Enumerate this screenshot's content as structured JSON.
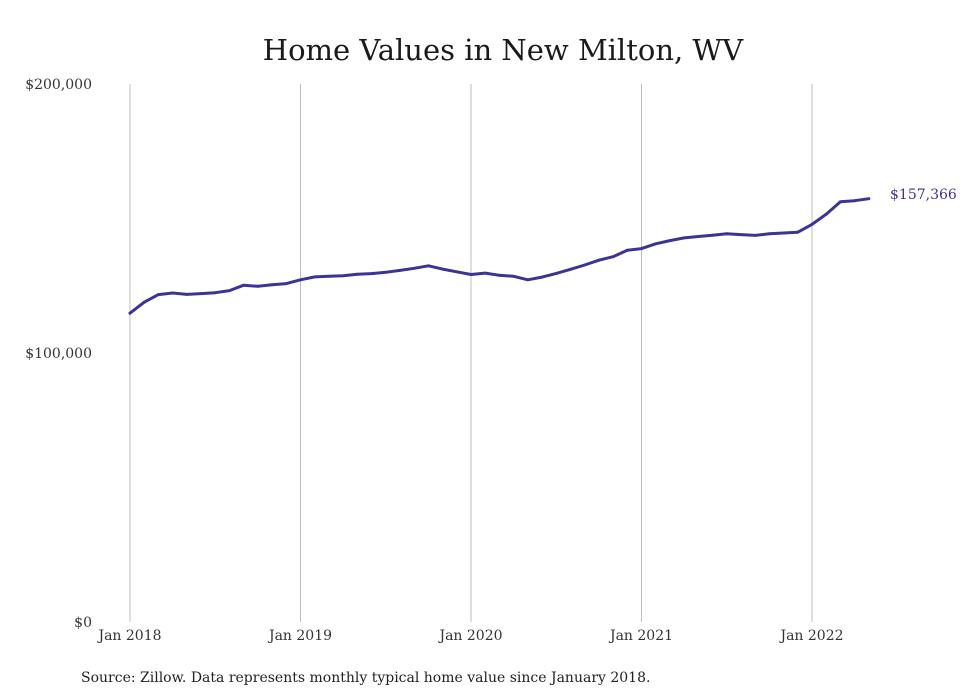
{
  "chart_data": {
    "type": "line",
    "title": "Home Values in New Milton, WV",
    "source_note": "Source: Zillow. Data represents monthly typical home value since January 2018.",
    "xlabel": "",
    "ylabel": "",
    "ylim": [
      0,
      200000
    ],
    "y_ticks": [
      {
        "value": 0,
        "label": "$0"
      },
      {
        "value": 100000,
        "label": "$100,000"
      },
      {
        "value": 200000,
        "label": "$200,000"
      }
    ],
    "x_ticks": [
      {
        "value": "2018-01",
        "label": "Jan 2018"
      },
      {
        "value": "2019-01",
        "label": "Jan 2019"
      },
      {
        "value": "2020-01",
        "label": "Jan 2020"
      },
      {
        "value": "2021-01",
        "label": "Jan 2021"
      },
      {
        "value": "2022-01",
        "label": "Jan 2022"
      }
    ],
    "grid": "vertical",
    "line_color": "#3c3494",
    "end_label": "$157,366",
    "series": [
      {
        "points": [
          [
            "2018-01",
            114800
          ],
          [
            "2018-02",
            118900
          ],
          [
            "2018-03",
            121700
          ],
          [
            "2018-04",
            122300
          ],
          [
            "2018-05",
            121800
          ],
          [
            "2018-06",
            122100
          ],
          [
            "2018-07",
            122400
          ],
          [
            "2018-08",
            123200
          ],
          [
            "2018-09",
            125200
          ],
          [
            "2018-10",
            124800
          ],
          [
            "2018-11",
            125400
          ],
          [
            "2018-12",
            125800
          ],
          [
            "2019-01",
            127200
          ],
          [
            "2019-02",
            128300
          ],
          [
            "2019-03",
            128500
          ],
          [
            "2019-04",
            128700
          ],
          [
            "2019-05",
            129300
          ],
          [
            "2019-06",
            129500
          ],
          [
            "2019-07",
            130000
          ],
          [
            "2019-08",
            130700
          ],
          [
            "2019-09",
            131500
          ],
          [
            "2019-10",
            132400
          ],
          [
            "2019-11",
            131200
          ],
          [
            "2019-12",
            130200
          ],
          [
            "2020-01",
            129200
          ],
          [
            "2020-02",
            129700
          ],
          [
            "2020-03",
            128900
          ],
          [
            "2020-04",
            128500
          ],
          [
            "2020-05",
            127200
          ],
          [
            "2020-06",
            128200
          ],
          [
            "2020-07",
            129600
          ],
          [
            "2020-08",
            131100
          ],
          [
            "2020-09",
            132700
          ],
          [
            "2020-10",
            134500
          ],
          [
            "2020-11",
            135800
          ],
          [
            "2020-12",
            138200
          ],
          [
            "2021-01",
            138800
          ],
          [
            "2021-02",
            140600
          ],
          [
            "2021-03",
            141800
          ],
          [
            "2021-04",
            142800
          ],
          [
            "2021-05",
            143300
          ],
          [
            "2021-06",
            143800
          ],
          [
            "2021-07",
            144300
          ],
          [
            "2021-08",
            144000
          ],
          [
            "2021-09",
            143700
          ],
          [
            "2021-10",
            144300
          ],
          [
            "2021-11",
            144600
          ],
          [
            "2021-12",
            144900
          ],
          [
            "2022-01",
            147800
          ],
          [
            "2022-02",
            151600
          ],
          [
            "2022-03",
            156200
          ],
          [
            "2022-04",
            156600
          ],
          [
            "2022-05",
            157366
          ]
        ]
      }
    ]
  }
}
